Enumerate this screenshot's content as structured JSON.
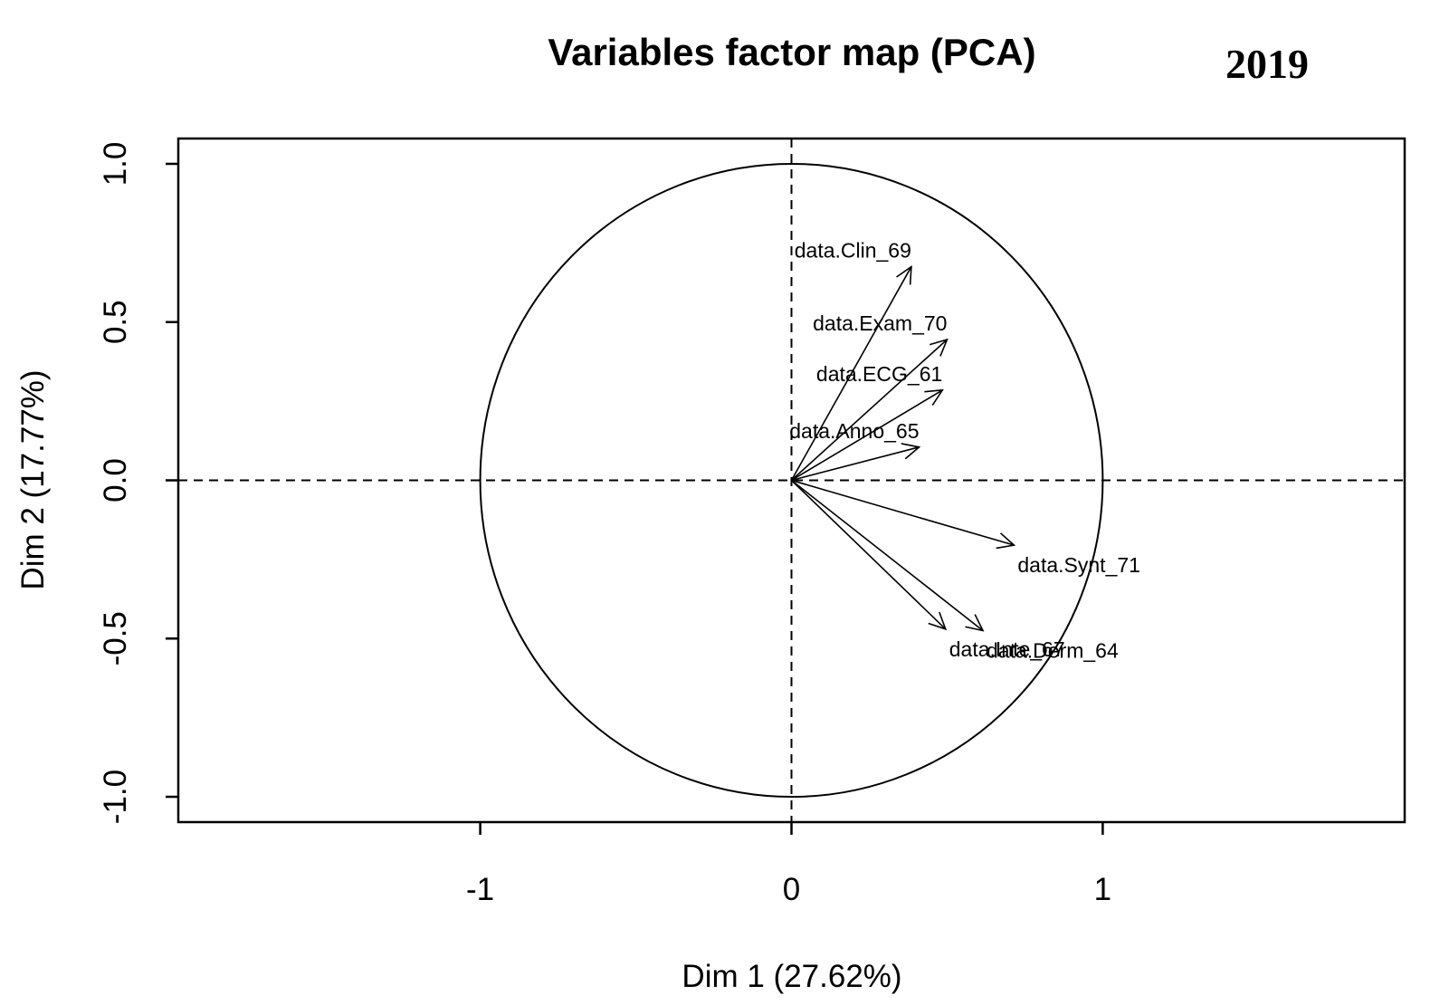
{
  "chart_data": {
    "type": "scatter",
    "title": "Variables factor map (PCA)",
    "annotation": "2019",
    "xlabel": "Dim 1 (27.62%)",
    "ylabel": "Dim 2 (17.77%)",
    "xlim": [
      -1.97,
      1.97
    ],
    "ylim": [
      -1.08,
      1.08
    ],
    "xticks": [
      {
        "value": -1,
        "label": "-1"
      },
      {
        "value": 0,
        "label": "0"
      },
      {
        "value": 1,
        "label": "1"
      }
    ],
    "yticks": [
      {
        "value": -1,
        "label": "-1.0"
      },
      {
        "value": -0.5,
        "label": "-0.5"
      },
      {
        "value": 0,
        "label": "0.0"
      },
      {
        "value": 0.5,
        "label": "0.5"
      },
      {
        "value": 1,
        "label": "1.0"
      }
    ],
    "unit_circle": true,
    "reference_lines": "dashed at x=0 and y=0",
    "grid": false,
    "series": [
      {
        "name": "data.Clin_69",
        "x": 0.385,
        "y": 0.675
      },
      {
        "name": "data.Exam_70",
        "x": 0.5,
        "y": 0.445
      },
      {
        "name": "data.ECG_61",
        "x": 0.485,
        "y": 0.285
      },
      {
        "name": "data.Anno_65",
        "x": 0.41,
        "y": 0.105
      },
      {
        "name": "data.Synt_71",
        "x": 0.715,
        "y": -0.205
      },
      {
        "name": "data.Inte_67",
        "x": 0.495,
        "y": -0.47
      },
      {
        "name": "data.Derm_64",
        "x": 0.615,
        "y": -0.475
      }
    ]
  }
}
